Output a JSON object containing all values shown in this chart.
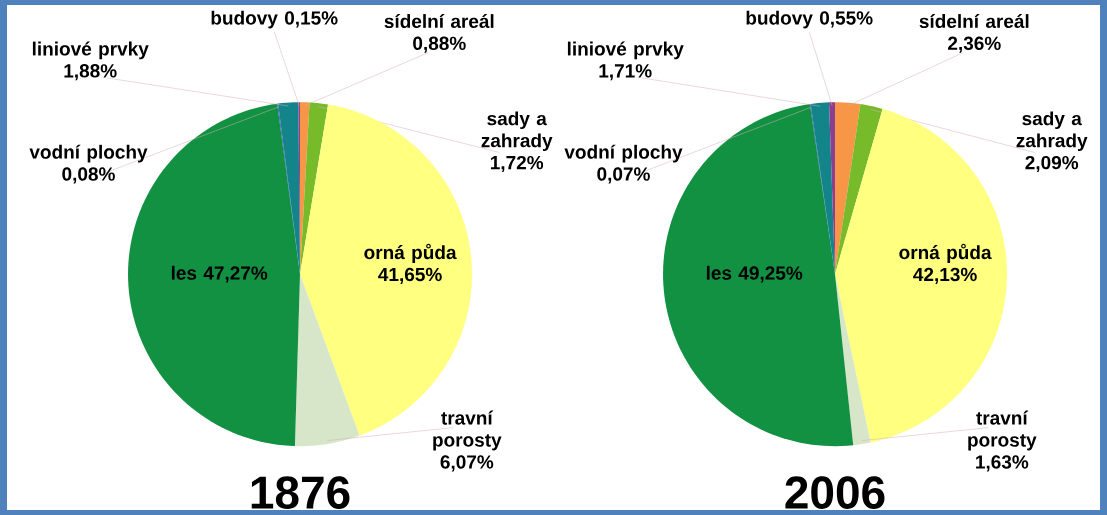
{
  "chart_data": [
    {
      "type": "pie",
      "title": "1876",
      "categories": [
        "sídelní areál",
        "sady a zahrady",
        "orná půda",
        "travní porosty",
        "les",
        "vodní plochy",
        "liniové prvky",
        "budovy"
      ],
      "values": [
        0.88,
        1.72,
        41.65,
        6.07,
        47.27,
        0.08,
        1.88,
        0.15
      ],
      "value_labels": [
        "0,88%",
        "1,72%",
        "41,65%",
        "6,07%",
        "47,27%",
        "0,08%",
        "1,88%",
        "0,15%"
      ],
      "colors": [
        "#f79646",
        "#77bb2a",
        "#ffff80",
        "#d7e6c8",
        "#129142",
        "#3355bb",
        "#12848a",
        "#8e3e8e"
      ]
    },
    {
      "type": "pie",
      "title": "2006",
      "categories": [
        "sídelní areál",
        "sady a zahrady",
        "orná půda",
        "travní porosty",
        "les",
        "vodní plochy",
        "liniové prvky",
        "budovy"
      ],
      "values": [
        2.36,
        2.09,
        42.13,
        1.63,
        49.25,
        0.07,
        1.71,
        0.55
      ],
      "value_labels": [
        "2,36%",
        "2,09%",
        "42,13%",
        "1,63%",
        "49,25%",
        "0,07%",
        "1,71%",
        "0,55%"
      ],
      "colors": [
        "#f79646",
        "#77bb2a",
        "#ffff80",
        "#d7e6c8",
        "#129142",
        "#3355bb",
        "#12848a",
        "#8e3e8e"
      ]
    }
  ]
}
